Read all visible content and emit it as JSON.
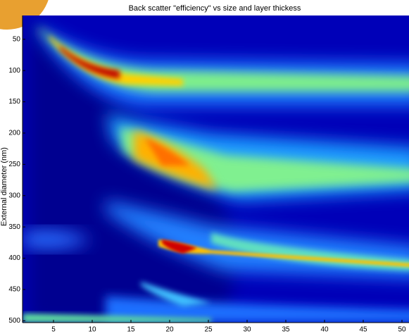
{
  "chart_data": {
    "type": "heatmap",
    "title": "Back scatter \"efficiency\" vs size and layer thickess",
    "ylabel": "External diameter (nm)",
    "xlim": [
      1,
      51
    ],
    "xticks": [
      5,
      10,
      15,
      20,
      25,
      30,
      35,
      40,
      45,
      50
    ],
    "ylim": [
      12,
      503
    ],
    "yticks": [
      50,
      100,
      150,
      200,
      250,
      300,
      350,
      400,
      450,
      500
    ],
    "y_inverted": true
  }
}
